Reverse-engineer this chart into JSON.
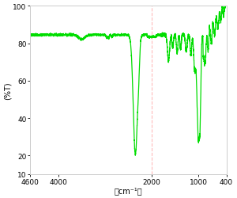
{
  "ylabel": "(%T)",
  "xlabel": "（cm⁻¹）",
  "xlim": [
    4600,
    400
  ],
  "ylim": [
    10,
    100
  ],
  "yticks": [
    20,
    40,
    60,
    80,
    100
  ],
  "ytick_labels": [
    "20",
    "40",
    "60",
    "80",
    "100"
  ],
  "xticks": [
    4600,
    4000,
    2000,
    1000,
    400
  ],
  "xtick_labels": [
    "4600",
    "4000",
    "2000",
    "1000",
    "400"
  ],
  "line_color": "#00dd00",
  "bg_color": "#ffffff",
  "border_color": "#cccccc",
  "grid_line_x": 2000,
  "grid_line_color": "#ffbbbb"
}
